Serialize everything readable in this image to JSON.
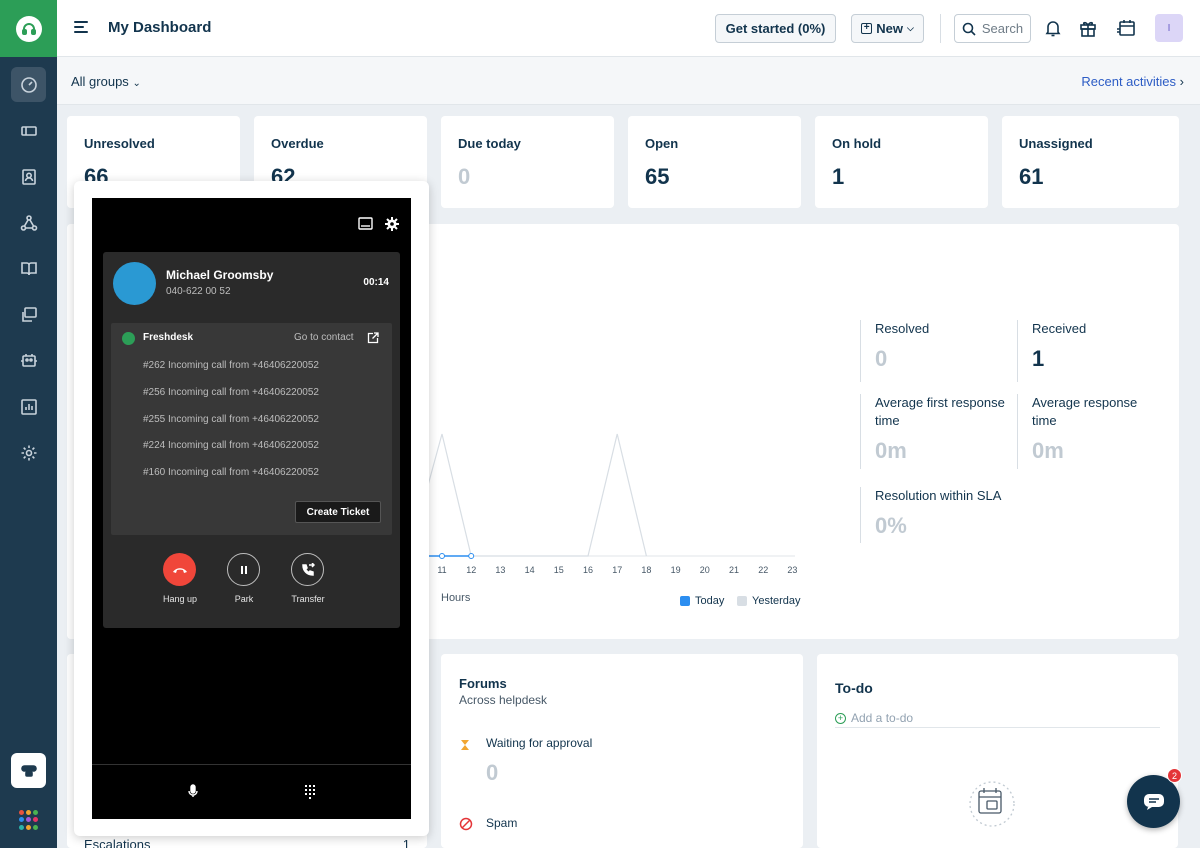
{
  "header": {
    "title": "My Dashboard",
    "get_started": "Get started (0%)",
    "new_label": "New",
    "search_placeholder": "Search",
    "avatar_initial": "I"
  },
  "subheader": {
    "groups": "All groups",
    "recent": "Recent activities"
  },
  "stats": [
    {
      "label": "Unresolved",
      "value": "66"
    },
    {
      "label": "Overdue",
      "value": "62"
    },
    {
      "label": "Due today",
      "value": "0"
    },
    {
      "label": "Open",
      "value": "65"
    },
    {
      "label": "On hold",
      "value": "1"
    },
    {
      "label": "Unassigned",
      "value": "61"
    }
  ],
  "metrics": {
    "resolved": {
      "label": "Resolved",
      "value": "0"
    },
    "received": {
      "label": "Received",
      "value": "1"
    },
    "avg_first": {
      "label": "Average first response time",
      "value": "0m"
    },
    "avg_resp": {
      "label": "Average response time",
      "value": "0m"
    },
    "sla": {
      "label": "Resolution within SLA",
      "value": "0%"
    }
  },
  "chart_data": {
    "type": "line",
    "x": [
      "11",
      "12",
      "13",
      "14",
      "15",
      "16",
      "17",
      "18",
      "19",
      "20",
      "21",
      "22",
      "23"
    ],
    "xlabel": "Hours",
    "series": [
      {
        "name": "Today",
        "color": "#2c8ef0"
      },
      {
        "name": "Yesterday",
        "color": "#d8dee4"
      }
    ]
  },
  "phone": {
    "caller_name": "Michael Groomsby",
    "caller_number": "040-622 00 52",
    "timer": "00:14",
    "brand": "Freshdesk",
    "go_to_contact": "Go to contact",
    "calls": [
      "#262 Incoming call from +46406220052",
      "#256 Incoming call from +46406220052",
      "#255 Incoming call from +46406220052",
      "#224 Incoming call from +46406220052",
      "#160 Incoming call from +46406220052"
    ],
    "create_ticket": "Create Ticket",
    "hangup": "Hang up",
    "park": "Park",
    "transfer": "Transfer"
  },
  "forums": {
    "title": "Forums",
    "subtitle": "Across helpdesk",
    "waiting_label": "Waiting for approval",
    "waiting_value": "0",
    "spam_label": "Spam"
  },
  "todo": {
    "title": "To-do",
    "add_placeholder": "Add a to-do"
  },
  "left_bottom": {
    "escalations": "Escalations",
    "escalations_count": "1"
  },
  "chat": {
    "badge": "2"
  },
  "colors": {
    "brand_green": "#2c9e57",
    "sidebar": "#1e3a4f",
    "hangup_red": "#f0463a",
    "link": "#2c5cc5"
  }
}
